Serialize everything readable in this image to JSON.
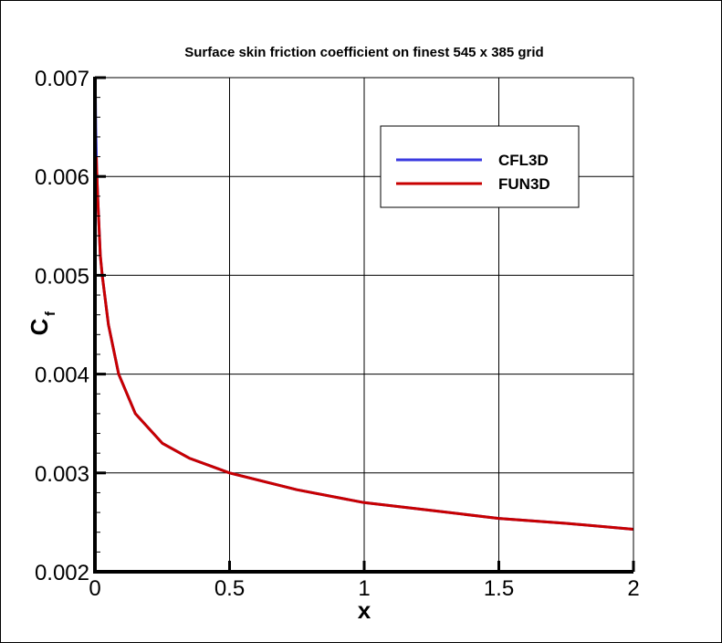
{
  "chart_data": {
    "type": "line",
    "title": "Surface skin friction coefficient on finest 545 x 385 grid",
    "xlabel": "x",
    "ylabel": "C",
    "ylabel_subscript": "f",
    "xlim": [
      0,
      2
    ],
    "ylim": [
      0.002,
      0.007
    ],
    "xticks": [
      "0",
      "0.5",
      "1",
      "1.5",
      "2"
    ],
    "yticks": [
      "0.002",
      "0.003",
      "0.004",
      "0.005",
      "0.006",
      "0.007"
    ],
    "grid": true,
    "legend_position": "top-right",
    "series": [
      {
        "name": "CFL3D",
        "color": "#3a3ae0",
        "x": [
          0.001,
          0.003,
          0.006,
          0.01,
          0.02,
          0.027,
          0.05,
          0.088,
          0.15,
          0.25,
          0.35,
          0.5,
          0.75,
          1.0,
          1.25,
          1.5,
          1.75,
          2.0
        ],
        "y": [
          0.007,
          0.0065,
          0.0061,
          0.0058,
          0.0052,
          0.005,
          0.0045,
          0.004,
          0.0036,
          0.0033,
          0.00315,
          0.003,
          0.00283,
          0.0027,
          0.00262,
          0.00254,
          0.00249,
          0.00243
        ]
      },
      {
        "name": "FUN3D",
        "color": "#c80000",
        "x": [
          0.005,
          0.006,
          0.01,
          0.02,
          0.027,
          0.05,
          0.088,
          0.15,
          0.25,
          0.35,
          0.5,
          0.75,
          1.0,
          1.25,
          1.5,
          1.75,
          2.0
        ],
        "y": [
          0.0062,
          0.0061,
          0.0058,
          0.0052,
          0.005,
          0.0045,
          0.004,
          0.0036,
          0.0033,
          0.00315,
          0.003,
          0.00283,
          0.0027,
          0.00262,
          0.00254,
          0.00249,
          0.00243
        ]
      }
    ]
  }
}
